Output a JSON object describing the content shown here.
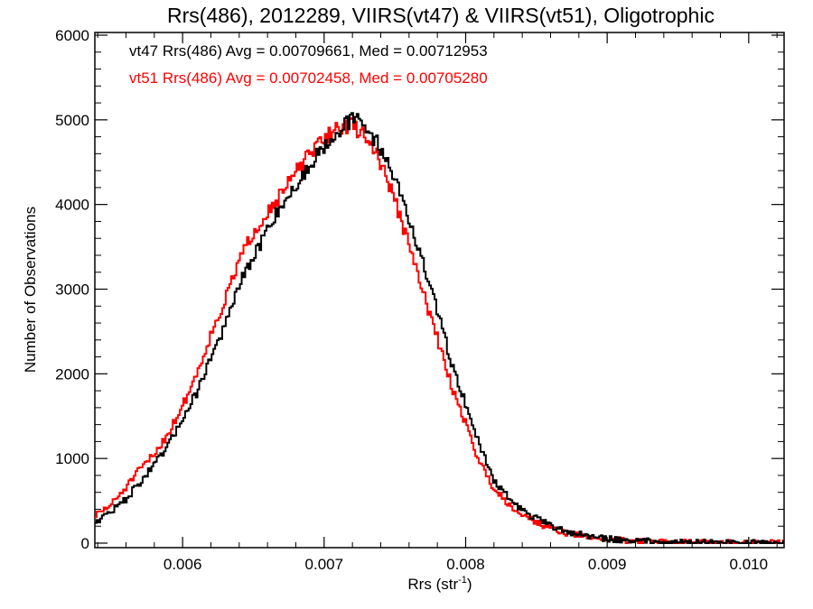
{
  "chart_data": {
    "type": "line",
    "title": "Rrs(486), 2012289, VIIRS(vt47) & VIIRS(vt51), Oligotrophic",
    "xlabel": "Rrs (str",
    "xlabel_sup": "-1",
    "xlabel_end": ")",
    "ylabel": "Number of Observations",
    "xlim": [
      0.00538,
      0.01025
    ],
    "ylim": [
      0,
      6000
    ],
    "x_ticks": [
      0.006,
      0.007,
      0.008,
      0.009,
      0.01
    ],
    "x_tick_labels": [
      "0.006",
      "0.007",
      "0.008",
      "0.009",
      "0.010"
    ],
    "y_ticks": [
      0,
      1000,
      2000,
      3000,
      4000,
      5000,
      6000
    ],
    "y_tick_labels": [
      "0",
      "1000",
      "2000",
      "3000",
      "4000",
      "5000",
      "6000"
    ],
    "grid": false,
    "step": true,
    "legend_position": "top-left",
    "series": [
      {
        "name": "vt47",
        "label": "vt47 Rrs(486) Avg = 0.00709661, Med = 0.00712953",
        "color": "#000000",
        "points": [
          [
            0.00538,
            250
          ],
          [
            0.0055,
            380
          ],
          [
            0.0056,
            520
          ],
          [
            0.0057,
            720
          ],
          [
            0.0058,
            920
          ],
          [
            0.0059,
            1150
          ],
          [
            0.006,
            1480
          ],
          [
            0.0061,
            1780
          ],
          [
            0.0062,
            2200
          ],
          [
            0.0063,
            2560
          ],
          [
            0.0064,
            3050
          ],
          [
            0.0065,
            3360
          ],
          [
            0.0066,
            3720
          ],
          [
            0.0067,
            4000
          ],
          [
            0.0068,
            4200
          ],
          [
            0.0069,
            4470
          ],
          [
            0.007,
            4700
          ],
          [
            0.0071,
            4870
          ],
          [
            0.00715,
            4960
          ],
          [
            0.0072,
            4990
          ],
          [
            0.00725,
            5000
          ],
          [
            0.0073,
            4900
          ],
          [
            0.0074,
            4670
          ],
          [
            0.0075,
            4320
          ],
          [
            0.0076,
            3830
          ],
          [
            0.0077,
            3290
          ],
          [
            0.0078,
            2750
          ],
          [
            0.0079,
            2130
          ],
          [
            0.008,
            1650
          ],
          [
            0.0081,
            1150
          ],
          [
            0.0082,
            750
          ],
          [
            0.0083,
            540
          ],
          [
            0.0084,
            390
          ],
          [
            0.0085,
            290
          ],
          [
            0.0086,
            205
          ],
          [
            0.0087,
            145
          ],
          [
            0.0088,
            105
          ],
          [
            0.0089,
            75
          ],
          [
            0.009,
            50
          ],
          [
            0.0092,
            30
          ],
          [
            0.0094,
            20
          ],
          [
            0.0096,
            10
          ],
          [
            0.0098,
            8
          ],
          [
            0.01,
            5
          ],
          [
            0.01025,
            3
          ]
        ]
      },
      {
        "name": "vt51",
        "label": "vt51 Rrs(486) Avg = 0.00702458, Med = 0.00705280",
        "color": "#ff0000",
        "points": [
          [
            0.00538,
            320
          ],
          [
            0.0055,
            460
          ],
          [
            0.0056,
            660
          ],
          [
            0.0057,
            870
          ],
          [
            0.0058,
            1050
          ],
          [
            0.0059,
            1300
          ],
          [
            0.006,
            1620
          ],
          [
            0.0061,
            2000
          ],
          [
            0.0062,
            2460
          ],
          [
            0.0063,
            2860
          ],
          [
            0.0064,
            3340
          ],
          [
            0.0065,
            3670
          ],
          [
            0.0066,
            3920
          ],
          [
            0.0067,
            4120
          ],
          [
            0.0068,
            4380
          ],
          [
            0.0069,
            4590
          ],
          [
            0.007,
            4780
          ],
          [
            0.0071,
            4920
          ],
          [
            0.0072,
            4930
          ],
          [
            0.0073,
            4800
          ],
          [
            0.0074,
            4500
          ],
          [
            0.0075,
            4050
          ],
          [
            0.0076,
            3520
          ],
          [
            0.0077,
            2960
          ],
          [
            0.0078,
            2420
          ],
          [
            0.0079,
            1860
          ],
          [
            0.008,
            1420
          ],
          [
            0.0081,
            950
          ],
          [
            0.0082,
            650
          ],
          [
            0.0083,
            470
          ],
          [
            0.0084,
            340
          ],
          [
            0.0085,
            250
          ],
          [
            0.0086,
            175
          ],
          [
            0.0087,
            125
          ],
          [
            0.0088,
            90
          ],
          [
            0.0089,
            65
          ],
          [
            0.009,
            45
          ],
          [
            0.0092,
            25
          ],
          [
            0.0094,
            15
          ],
          [
            0.0096,
            10
          ],
          [
            0.0098,
            6
          ],
          [
            0.01,
            4
          ],
          [
            0.01025,
            2
          ]
        ]
      }
    ]
  }
}
